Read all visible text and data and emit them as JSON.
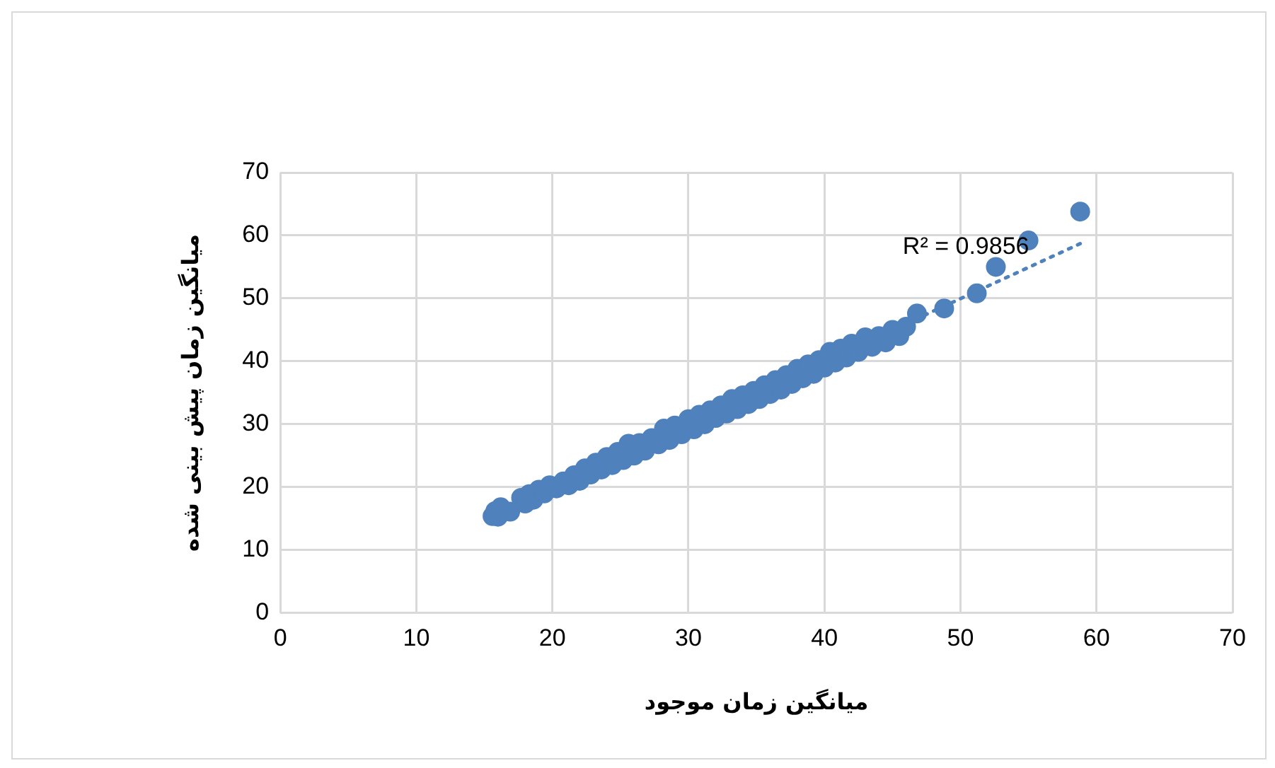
{
  "chart_data": {
    "type": "scatter",
    "xlabel": "میانگین زمان موجود",
    "ylabel": "میانگین زمان پیش بینی شده",
    "xlim": [
      0,
      70
    ],
    "xticks": [
      0,
      10,
      20,
      30,
      40,
      50,
      60,
      70
    ],
    "ylim": [
      0,
      70
    ],
    "yticks": [
      0,
      10,
      20,
      30,
      40,
      50,
      60,
      70
    ],
    "grid": true,
    "legend": false,
    "annotations": [
      "R² = 0.9856"
    ],
    "series": [
      {
        "color": "#4f81bd",
        "marker": "circle",
        "x": [
          15.6,
          15.8,
          16.0,
          16.2,
          16.9,
          17.7,
          18.0,
          18.3,
          18.6,
          19.0,
          19.4,
          19.8,
          20.3,
          20.8,
          21.2,
          21.6,
          22.0,
          22.4,
          22.8,
          23.2,
          23.6,
          24.0,
          24.4,
          24.8,
          25.2,
          25.6,
          26.0,
          26.4,
          26.8,
          27.3,
          27.8,
          28.2,
          28.6,
          29.0,
          29.5,
          30.0,
          30.4,
          30.8,
          31.2,
          31.6,
          32.0,
          32.4,
          32.8,
          33.2,
          33.6,
          34.0,
          34.4,
          34.8,
          35.2,
          35.6,
          36.0,
          36.4,
          36.8,
          37.2,
          37.6,
          38.0,
          38.4,
          38.8,
          39.2,
          39.6,
          40.0,
          40.4,
          40.8,
          41.2,
          41.6,
          42.0,
          42.5,
          43.0,
          43.5,
          44.0,
          44.5,
          45.0,
          45.5,
          46.0,
          46.8,
          48.8,
          51.2,
          52.6,
          55.0,
          58.8
        ],
        "values": [
          15.4,
          16.2,
          15.3,
          16.8,
          16.1,
          18.3,
          17.4,
          18.9,
          18.0,
          19.6,
          19.0,
          20.3,
          19.8,
          20.9,
          20.3,
          21.9,
          21.0,
          23.0,
          22.0,
          23.9,
          22.8,
          24.8,
          23.5,
          25.6,
          24.3,
          26.9,
          25.0,
          27.0,
          25.8,
          27.8,
          26.8,
          29.3,
          27.5,
          29.8,
          28.4,
          30.8,
          29.2,
          31.5,
          30.0,
          32.2,
          31.0,
          33.0,
          31.7,
          34.0,
          32.4,
          34.6,
          33.2,
          35.3,
          34.0,
          36.2,
          34.8,
          37.0,
          35.5,
          37.8,
          36.4,
          38.8,
          37.3,
          39.5,
          38.0,
          40.2,
          39.0,
          41.5,
          39.8,
          42.0,
          40.6,
          42.8,
          41.5,
          43.8,
          42.3,
          44.0,
          43.0,
          45.0,
          44.0,
          45.5,
          47.6,
          48.4,
          50.8,
          55.0,
          59.2,
          63.8
        ]
      },
      {
        "type": "line",
        "color": "#4f81bd",
        "line_style": "dotted",
        "marker": "none",
        "x": [
          15.6,
          58.8
        ],
        "values": [
          15.8,
          58.7
        ]
      }
    ]
  }
}
